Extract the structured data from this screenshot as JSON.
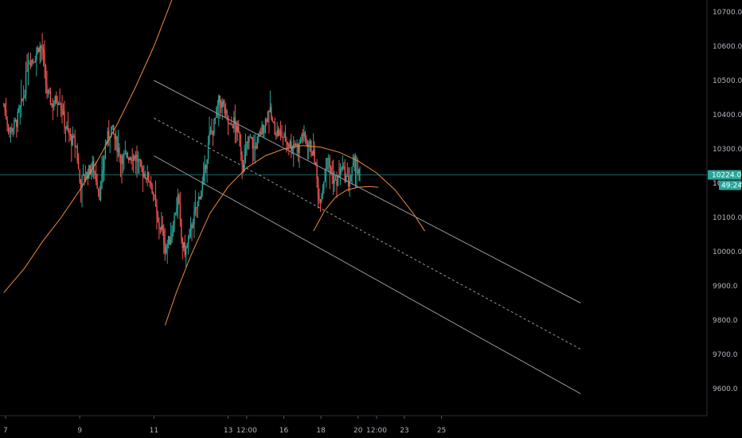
{
  "colors": {
    "background": "#000000",
    "up": "#26a69a",
    "down": "#ef5350",
    "orange": "#f0883e",
    "channel": "#9598a1",
    "price_line": "#26a69a",
    "axis_text": "#b2b5be"
  },
  "chart_data": {
    "type": "candlestick",
    "title": "",
    "xlabel": "",
    "ylabel": "",
    "ylim": [
      9530,
      10780
    ],
    "y_ticks": [
      9600,
      9700,
      9800,
      9900,
      10000,
      10100,
      10200,
      10300,
      10400,
      10500,
      10600,
      10700
    ],
    "y_tick_labels": [
      "9600.0",
      "9700.0",
      "9800.0",
      "9900.0",
      "10000.0",
      "10100.0",
      "10200.0",
      "10300.0",
      "10400.0",
      "10500.0",
      "10600.0",
      "10700.0"
    ],
    "x_ticks": [
      {
        "label": "7",
        "t": 0
      },
      {
        "label": "9",
        "t": 2
      },
      {
        "label": "11",
        "t": 4
      },
      {
        "label": "13",
        "t": 6
      },
      {
        "label": "12:00",
        "t": 6.5
      },
      {
        "label": "16",
        "t": 7.5
      },
      {
        "label": "18",
        "t": 8.5
      },
      {
        "label": "20",
        "t": 9.5
      },
      {
        "label": "12:00",
        "t": 10
      },
      {
        "label": "23",
        "t": 10.75
      },
      {
        "label": "25",
        "t": 11.75
      }
    ],
    "last_price": 10224.0,
    "last_price_label": "10224.0",
    "countdown_label": "49:24",
    "hidden_label_fragment": "10",
    "close_path": [
      [
        -0.05,
        10430
      ],
      [
        0.1,
        10350
      ],
      [
        0.3,
        10380
      ],
      [
        0.4,
        10420
      ],
      [
        0.5,
        10460
      ],
      [
        0.6,
        10560
      ],
      [
        0.75,
        10560
      ],
      [
        0.9,
        10600
      ],
      [
        1.0,
        10590
      ],
      [
        1.1,
        10470
      ],
      [
        1.25,
        10430
      ],
      [
        1.45,
        10450
      ],
      [
        1.6,
        10370
      ],
      [
        1.75,
        10330
      ],
      [
        1.9,
        10310
      ],
      [
        2.0,
        10200
      ],
      [
        2.15,
        10220
      ],
      [
        2.35,
        10250
      ],
      [
        2.45,
        10210
      ],
      [
        2.55,
        10160
      ],
      [
        2.7,
        10320
      ],
      [
        2.85,
        10360
      ],
      [
        3.0,
        10310
      ],
      [
        3.15,
        10270
      ],
      [
        3.3,
        10280
      ],
      [
        3.5,
        10280
      ],
      [
        3.65,
        10240
      ],
      [
        3.8,
        10220
      ],
      [
        3.9,
        10210
      ],
      [
        4.0,
        10160
      ],
      [
        4.1,
        10080
      ],
      [
        4.2,
        10070
      ],
      [
        4.3,
        10010
      ],
      [
        4.45,
        10040
      ],
      [
        4.55,
        10100
      ],
      [
        4.65,
        10160
      ],
      [
        4.75,
        10020
      ],
      [
        4.85,
        10000
      ],
      [
        5.0,
        10070
      ],
      [
        5.1,
        10110
      ],
      [
        5.2,
        10150
      ],
      [
        5.35,
        10220
      ],
      [
        5.5,
        10340
      ],
      [
        5.6,
        10360
      ],
      [
        5.75,
        10440
      ],
      [
        5.85,
        10430
      ],
      [
        5.95,
        10390
      ],
      [
        6.05,
        10360
      ],
      [
        6.15,
        10380
      ],
      [
        6.25,
        10350
      ],
      [
        6.3,
        10330
      ],
      [
        6.4,
        10250
      ],
      [
        6.5,
        10310
      ],
      [
        6.6,
        10330
      ],
      [
        6.7,
        10300
      ],
      [
        6.85,
        10340
      ],
      [
        7.0,
        10380
      ],
      [
        7.05,
        10400
      ],
      [
        7.1,
        10420
      ],
      [
        7.2,
        10370
      ],
      [
        7.3,
        10350
      ],
      [
        7.45,
        10340
      ],
      [
        7.6,
        10320
      ],
      [
        7.7,
        10310
      ],
      [
        7.8,
        10320
      ],
      [
        7.9,
        10300
      ],
      [
        8.0,
        10350
      ],
      [
        8.05,
        10330
      ],
      [
        8.15,
        10320
      ],
      [
        8.25,
        10300
      ],
      [
        8.3,
        10280
      ],
      [
        8.35,
        10260
      ],
      [
        8.4,
        10200
      ],
      [
        8.45,
        10150
      ],
      [
        8.55,
        10190
      ],
      [
        8.6,
        10230
      ],
      [
        8.65,
        10290
      ],
      [
        8.75,
        10240
      ],
      [
        8.8,
        10220
      ],
      [
        8.9,
        10200
      ],
      [
        9.0,
        10220
      ],
      [
        9.05,
        10250
      ],
      [
        9.15,
        10220
      ],
      [
        9.25,
        10200
      ],
      [
        9.35,
        10240
      ],
      [
        9.4,
        10260
      ],
      [
        9.5,
        10230
      ],
      [
        9.55,
        10224
      ]
    ],
    "orange_curves": [
      {
        "name": "",
        "points": [
          [
            -0.05,
            9880
          ],
          [
            0.5,
            9950
          ],
          [
            1.0,
            10030
          ],
          [
            1.5,
            10100
          ],
          [
            2.0,
            10180
          ],
          [
            2.5,
            10270
          ],
          [
            3.0,
            10370
          ],
          [
            3.5,
            10480
          ],
          [
            4.0,
            10600
          ],
          [
            4.5,
            10740
          ]
        ]
      },
      {
        "name": "",
        "points": [
          [
            4.3,
            9785
          ],
          [
            4.6,
            9880
          ],
          [
            5.0,
            9990
          ],
          [
            5.5,
            10110
          ],
          [
            6.0,
            10190
          ],
          [
            6.5,
            10245
          ],
          [
            7.0,
            10280
          ],
          [
            7.5,
            10300
          ],
          [
            8.0,
            10310
          ],
          [
            8.5,
            10305
          ],
          [
            9.0,
            10290
          ],
          [
            9.5,
            10265
          ],
          [
            10.0,
            10230
          ],
          [
            10.5,
            10180
          ],
          [
            11.0,
            10110
          ],
          [
            11.3,
            10060
          ]
        ]
      },
      {
        "name": "",
        "points": [
          [
            8.3,
            10060
          ],
          [
            8.6,
            10120
          ],
          [
            8.9,
            10160
          ],
          [
            9.2,
            10180
          ],
          [
            9.5,
            10188
          ],
          [
            9.8,
            10190
          ],
          [
            10.05,
            10188
          ]
        ]
      }
    ],
    "channel": {
      "upper": {
        "from": [
          4.0,
          10500
        ],
        "to": [
          15.5,
          9850
        ]
      },
      "middle": {
        "from": [
          4.0,
          10390
        ],
        "to": [
          15.5,
          9715
        ]
      },
      "lower": {
        "from": [
          4.0,
          10280
        ],
        "to": [
          15.5,
          9585
        ]
      }
    }
  }
}
